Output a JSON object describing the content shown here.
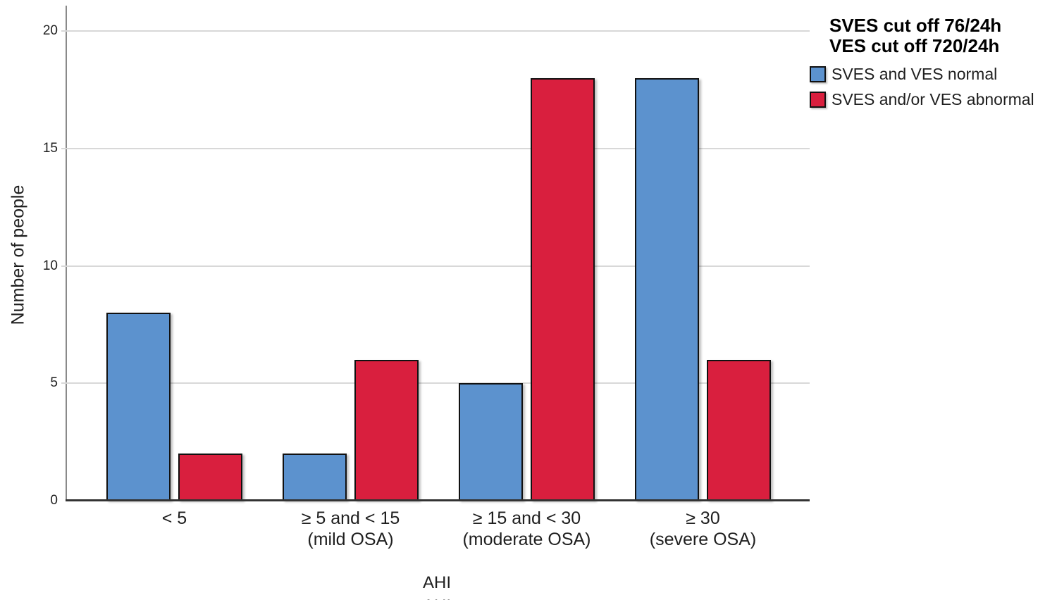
{
  "page": {
    "background": "#FFFFFF"
  },
  "chart_data": {
    "type": "bar",
    "title": "",
    "xlabel": "AHI",
    "xlabel_partial_second_line_clipped_at_bottom_edge": "AHI",
    "ylabel": "Number of people",
    "ylim": [
      0,
      21
    ],
    "yticks": [
      0,
      5,
      10,
      15,
      20
    ],
    "grid": "horizontal",
    "legend_position": "top-right",
    "categories": [
      "< 5",
      "≥ 5 and < 15\n(mild OSA)",
      "≥ 15 and < 30\n(moderate OSA)",
      "≥ 30\n(severe OSA)"
    ],
    "series": [
      {
        "name": "SVES and VES normal",
        "color": "#5C92CE",
        "values": [
          8,
          2,
          5,
          18
        ]
      },
      {
        "name": "SVES and/or VES abnormal",
        "color": "#D91F3E",
        "values": [
          2,
          6,
          18,
          6
        ]
      }
    ],
    "legend": {
      "title_line1": "SVES cut off 76/24h",
      "title_line2": "VES cut off 720/24h"
    },
    "colors": {
      "bar_blue": "#5C92CE",
      "bar_red": "#D91F3E",
      "bar_border": "#111111",
      "axis_line": "#8A8A8A",
      "gridline": "#D8D8D8",
      "baseline": "#333333",
      "text": "#1F1F1F"
    }
  }
}
